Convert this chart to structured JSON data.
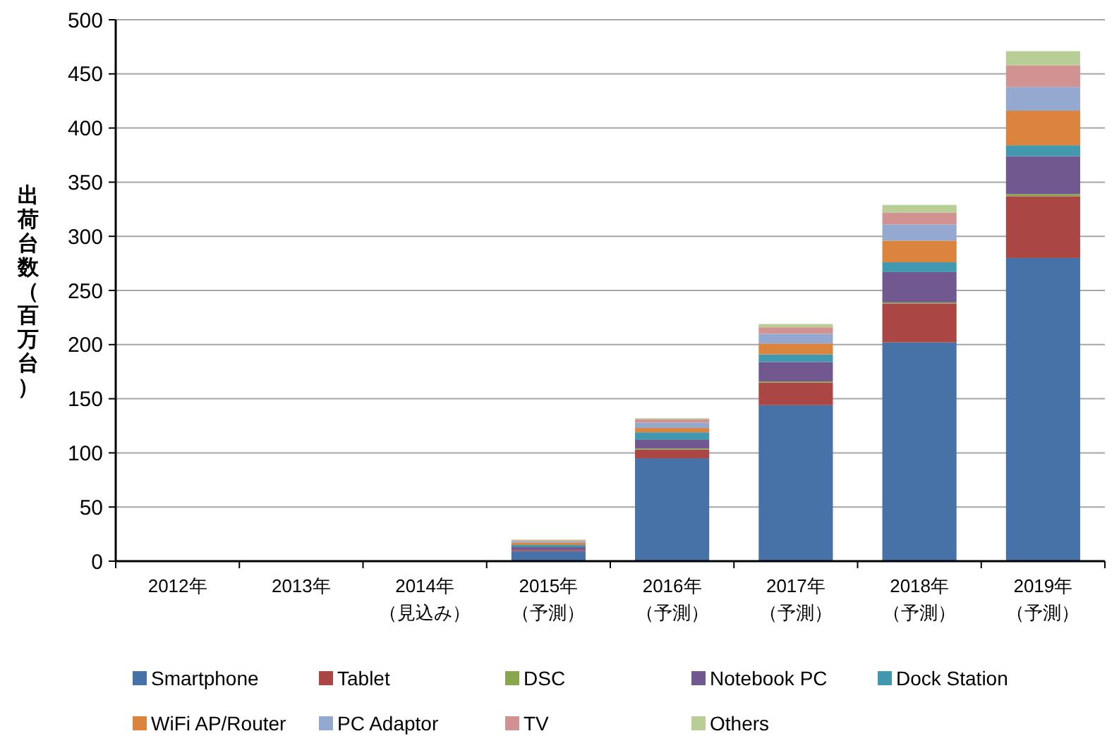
{
  "chart_data": {
    "type": "bar",
    "stacked": true,
    "ylabel": "出荷台数（百万台）",
    "categories": [
      "2012年",
      "2013年",
      "2014年（見込み）",
      "2015年（予測）",
      "2016年（予測）",
      "2017年（予測）",
      "2018年（予測）",
      "2019年（予測）"
    ],
    "series": [
      {
        "name": "Smartphone",
        "color": "#4672a8",
        "values": [
          0,
          0,
          0,
          9,
          95,
          144,
          202,
          280
        ]
      },
      {
        "name": "Tablet",
        "color": "#aa4643",
        "values": [
          0,
          0,
          0,
          1,
          8,
          21,
          36,
          57
        ]
      },
      {
        "name": "DSC",
        "color": "#89a54e",
        "values": [
          0,
          0,
          0,
          0,
          1,
          1,
          1,
          2
        ]
      },
      {
        "name": "Notebook PC",
        "color": "#71588f",
        "values": [
          0,
          0,
          0,
          3,
          8,
          18,
          28,
          35
        ]
      },
      {
        "name": "Dock Station",
        "color": "#4198af",
        "values": [
          0,
          0,
          0,
          2,
          7,
          7,
          9,
          10
        ]
      },
      {
        "name": "WiFi AP/Router",
        "color": "#db843d",
        "values": [
          0,
          0,
          0,
          2,
          4,
          10,
          20,
          32
        ]
      },
      {
        "name": "PC Adaptor",
        "color": "#93a9cf",
        "values": [
          0,
          0,
          0,
          1,
          5,
          9,
          15,
          22
        ]
      },
      {
        "name": "TV",
        "color": "#d19392",
        "values": [
          0,
          0,
          0,
          1,
          3,
          6,
          11,
          20
        ]
      },
      {
        "name": "Others",
        "color": "#b9cd96",
        "values": [
          0,
          0,
          0,
          1,
          1,
          3,
          7,
          13
        ]
      }
    ],
    "ylim": [
      0,
      500
    ],
    "yticks": [
      0,
      50,
      100,
      150,
      200,
      250,
      300,
      350,
      400,
      450,
      500
    ],
    "grid": "y",
    "legend": "bottom"
  }
}
